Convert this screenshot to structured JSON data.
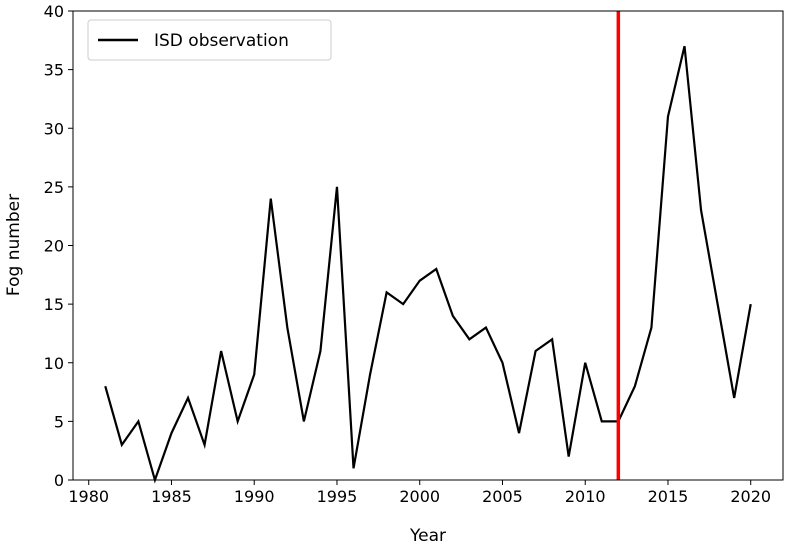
{
  "chart_data": {
    "type": "line",
    "title": "",
    "xlabel": "Year",
    "ylabel": "Fog number",
    "xlim": [
      1979.05,
      2021.95
    ],
    "ylim": [
      0,
      40
    ],
    "xticks": [
      1980,
      1985,
      1990,
      1995,
      2000,
      2005,
      2010,
      2015,
      2020
    ],
    "yticks": [
      0,
      5,
      10,
      15,
      20,
      25,
      30,
      35,
      40
    ],
    "grid": false,
    "legend_position": "top-left",
    "series": [
      {
        "name": "ISD observation",
        "color": "#000000",
        "x": [
          1981,
          1982,
          1983,
          1984,
          1985,
          1986,
          1987,
          1988,
          1989,
          1990,
          1991,
          1992,
          1993,
          1994,
          1995,
          1996,
          1997,
          1998,
          1999,
          2000,
          2001,
          2002,
          2003,
          2004,
          2005,
          2006,
          2007,
          2008,
          2009,
          2010,
          2011,
          2012,
          2013,
          2014,
          2015,
          2016,
          2017,
          2018,
          2019,
          2020
        ],
        "y": [
          8,
          3,
          5,
          0,
          4,
          7,
          3,
          11,
          5,
          9,
          24,
          13,
          5,
          11,
          25,
          1,
          9,
          16,
          15,
          17,
          18,
          14,
          12,
          13,
          10,
          4,
          11,
          12,
          2,
          10,
          5,
          5,
          8,
          13,
          31,
          37,
          23,
          15,
          7,
          15
        ]
      }
    ],
    "vertical_line": {
      "x": 2012,
      "color": "#ff0000"
    }
  }
}
